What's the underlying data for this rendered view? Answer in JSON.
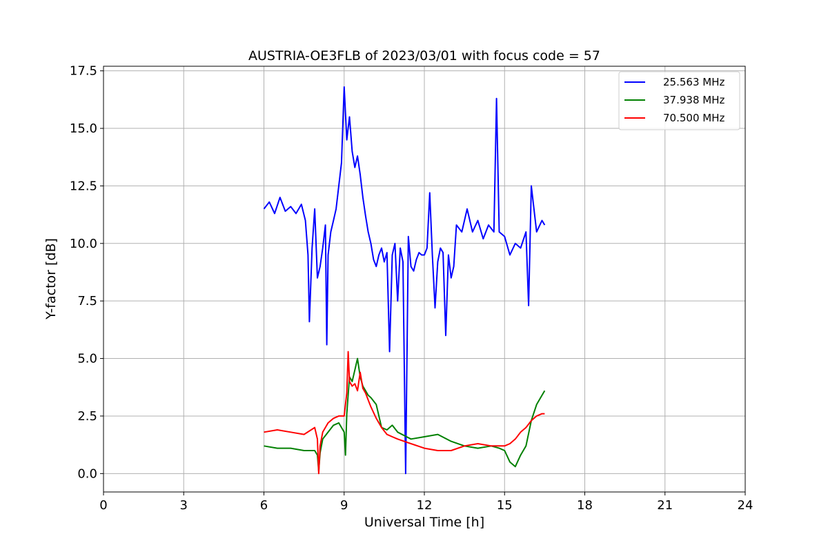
{
  "chart_data": {
    "type": "line",
    "title": "AUSTRIA-OE3FLB of 2023/03/01 with focus code = 57",
    "xlabel": "Universal Time [h]",
    "ylabel": "Y-factor [dB]",
    "xlim": [
      0,
      24
    ],
    "ylim": [
      -0.8,
      17.7
    ],
    "xticks": [
      0,
      3,
      6,
      9,
      12,
      15,
      18,
      21,
      24
    ],
    "xtick_labels": [
      "0",
      "3",
      "6",
      "9",
      "12",
      "15",
      "18",
      "21",
      "24"
    ],
    "yticks": [
      0,
      2.5,
      5,
      7.5,
      10,
      12.5,
      15,
      17.5
    ],
    "ytick_labels": [
      "0.0",
      "2.5",
      "5.0",
      "7.5",
      "10.0",
      "12.5",
      "15.0",
      "17.5"
    ],
    "grid": true,
    "legend_position": "top-right",
    "series": [
      {
        "name": "25.563 MHz",
        "color": "#0000ff",
        "x": [
          6.0,
          6.2,
          6.4,
          6.6,
          6.8,
          7.0,
          7.2,
          7.4,
          7.55,
          7.65,
          7.7,
          7.8,
          7.9,
          8.0,
          8.1,
          8.2,
          8.3,
          8.35,
          8.4,
          8.5,
          8.6,
          8.7,
          8.8,
          8.9,
          9.0,
          9.1,
          9.2,
          9.3,
          9.4,
          9.5,
          9.6,
          9.7,
          9.8,
          9.9,
          10.0,
          10.1,
          10.2,
          10.3,
          10.4,
          10.5,
          10.6,
          10.7,
          10.8,
          10.9,
          11.0,
          11.1,
          11.2,
          11.3,
          11.4,
          11.5,
          11.6,
          11.7,
          11.8,
          11.9,
          12.0,
          12.1,
          12.2,
          12.3,
          12.4,
          12.5,
          12.6,
          12.7,
          12.8,
          12.9,
          13.0,
          13.1,
          13.2,
          13.4,
          13.6,
          13.8,
          14.0,
          14.2,
          14.4,
          14.6,
          14.7,
          14.8,
          15.0,
          15.2,
          15.4,
          15.6,
          15.8,
          15.9,
          16.0,
          16.2,
          16.4,
          16.5
        ],
        "y": [
          11.5,
          11.8,
          11.3,
          12.0,
          11.4,
          11.6,
          11.3,
          11.7,
          11.0,
          9.5,
          6.6,
          9.8,
          11.5,
          8.5,
          9.0,
          9.8,
          10.8,
          5.6,
          9.5,
          10.5,
          11.0,
          11.5,
          12.5,
          13.5,
          16.8,
          14.5,
          15.5,
          14.0,
          13.3,
          13.8,
          13.0,
          12.0,
          11.2,
          10.5,
          10.0,
          9.3,
          9.0,
          9.5,
          9.8,
          9.2,
          9.6,
          5.3,
          9.5,
          10.0,
          7.5,
          9.8,
          9.2,
          0.0,
          10.3,
          9.0,
          8.8,
          9.3,
          9.6,
          9.5,
          9.5,
          9.8,
          12.2,
          9.5,
          7.2,
          9.2,
          9.8,
          9.6,
          6.0,
          9.5,
          8.5,
          9.0,
          10.8,
          10.5,
          11.5,
          10.5,
          11.0,
          10.2,
          10.8,
          10.5,
          16.3,
          10.5,
          10.3,
          9.5,
          10.0,
          9.8,
          10.5,
          7.3,
          12.5,
          10.5,
          11.0,
          10.8
        ]
      },
      {
        "name": "37.938 MHz",
        "color": "#008000",
        "x": [
          6.0,
          6.5,
          7.0,
          7.5,
          7.9,
          8.0,
          8.05,
          8.1,
          8.2,
          8.4,
          8.6,
          8.8,
          9.0,
          9.05,
          9.1,
          9.2,
          9.3,
          9.4,
          9.5,
          9.6,
          9.7,
          9.8,
          9.9,
          10.0,
          10.2,
          10.4,
          10.6,
          10.8,
          11.0,
          11.5,
          12.0,
          12.5,
          13.0,
          13.5,
          14.0,
          14.5,
          14.8,
          15.0,
          15.2,
          15.4,
          15.6,
          15.8,
          16.0,
          16.2,
          16.4,
          16.5
        ],
        "y": [
          1.2,
          1.1,
          1.1,
          1.0,
          1.0,
          0.8,
          0.1,
          0.9,
          1.5,
          1.8,
          2.1,
          2.2,
          1.8,
          0.8,
          2.6,
          4.2,
          4.0,
          4.5,
          5.0,
          4.2,
          3.8,
          3.6,
          3.4,
          3.3,
          3.0,
          2.0,
          1.9,
          2.1,
          1.8,
          1.5,
          1.6,
          1.7,
          1.4,
          1.2,
          1.1,
          1.2,
          1.1,
          1.0,
          0.5,
          0.3,
          0.8,
          1.2,
          2.3,
          3.0,
          3.4,
          3.6
        ]
      },
      {
        "name": "70.500 MHz",
        "color": "#ff0000",
        "x": [
          6.0,
          6.5,
          7.0,
          7.5,
          7.9,
          8.0,
          8.05,
          8.1,
          8.2,
          8.4,
          8.6,
          8.8,
          9.0,
          9.1,
          9.15,
          9.2,
          9.3,
          9.4,
          9.5,
          9.6,
          9.7,
          9.8,
          9.9,
          10.0,
          10.2,
          10.4,
          10.6,
          10.8,
          11.0,
          11.5,
          12.0,
          12.5,
          13.0,
          13.5,
          14.0,
          14.5,
          15.0,
          15.2,
          15.4,
          15.6,
          15.8,
          16.0,
          16.2,
          16.4,
          16.5
        ],
        "y": [
          1.8,
          1.9,
          1.8,
          1.7,
          2.0,
          1.5,
          0.0,
          1.2,
          1.8,
          2.2,
          2.4,
          2.5,
          2.5,
          3.5,
          5.3,
          4.0,
          3.8,
          3.9,
          3.6,
          4.4,
          3.7,
          3.5,
          3.2,
          2.9,
          2.4,
          2.0,
          1.7,
          1.6,
          1.5,
          1.3,
          1.1,
          1.0,
          1.0,
          1.2,
          1.3,
          1.2,
          1.2,
          1.3,
          1.5,
          1.8,
          2.0,
          2.3,
          2.5,
          2.6,
          2.6
        ]
      }
    ]
  }
}
